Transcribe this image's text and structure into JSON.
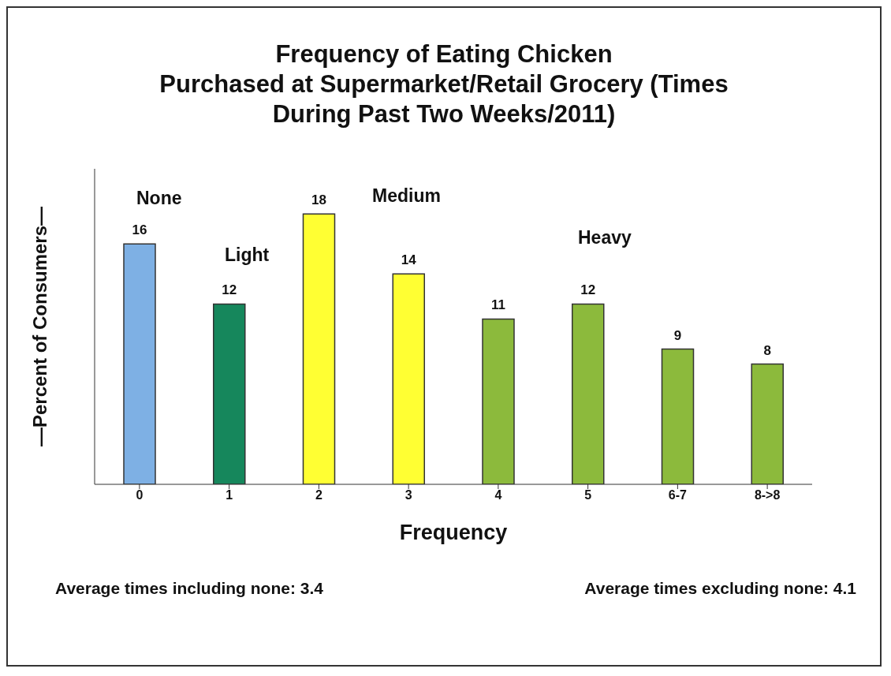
{
  "chart_data": {
    "type": "bar",
    "title": "Frequency of Eating Chicken\nPurchased at Supermarket/Retail Grocery (Times\nDuring Past Two Weeks/2011)",
    "xlabel": "Frequency",
    "ylabel": "—Percent of Consumers—",
    "categories": [
      "0",
      "1",
      "2",
      "3",
      "4",
      "5",
      "6-7",
      "8->8"
    ],
    "values": [
      16,
      12,
      18,
      14,
      11,
      12,
      9,
      8
    ],
    "colors": [
      "#7eb0e4",
      "#16875c",
      "#ffff33",
      "#ffff33",
      "#8cba3c",
      "#8cba3c",
      "#8cba3c",
      "#8cba3c"
    ],
    "ylim": [
      0,
      21
    ],
    "tick_labels": "x",
    "data_labels": true,
    "annotations": [
      "None",
      "Light",
      "Medium",
      "Heavy",
      "Average times including none: 3.4",
      "Average times excluding none: 4.1"
    ]
  }
}
